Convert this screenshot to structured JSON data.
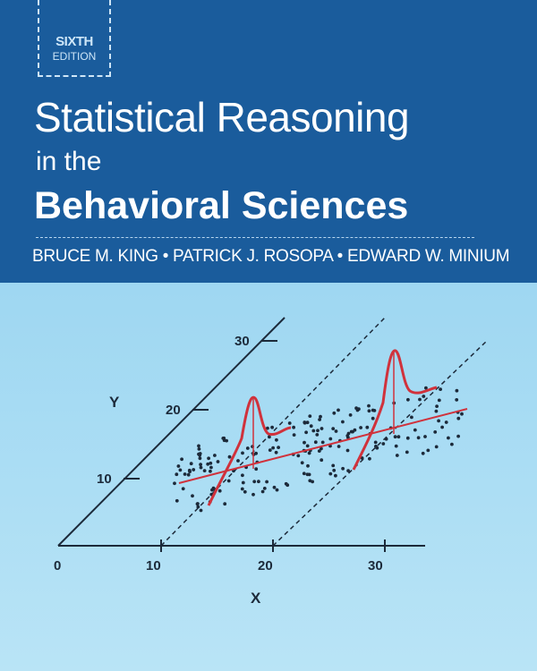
{
  "cover": {
    "edition_line1": "SIXTH",
    "edition_line2": "EDITION",
    "title_line1": "Statistical Reasoning",
    "title_line2": "in the",
    "title_line3": "Behavioral Sciences",
    "authors": "BRUCE M. KING • PATRICK J. ROSOPA • EDWARD W. MINIUM"
  },
  "diagram": {
    "y_axis_label": "Y",
    "x_axis_label": "X",
    "y_ticks": [
      "10",
      "20",
      "30"
    ],
    "x_ticks": [
      "0",
      "10",
      "20",
      "30"
    ]
  },
  "colors": {
    "band": "#1a5c9c",
    "curve": "#d0323c",
    "axes": "#1c2a3a"
  }
}
